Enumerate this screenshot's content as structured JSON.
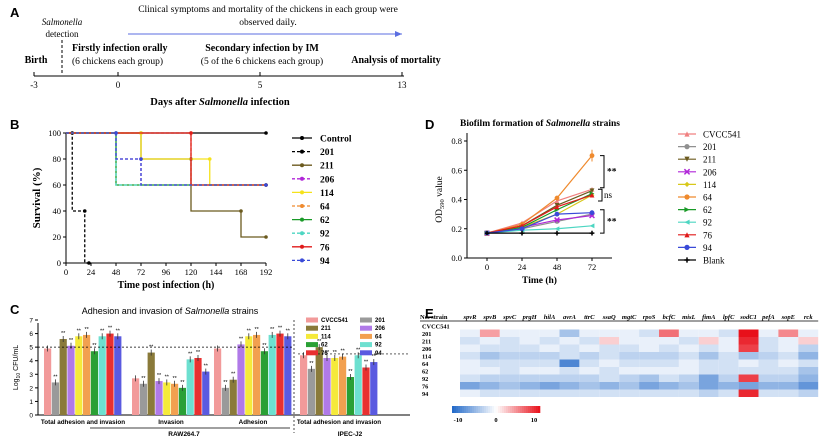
{
  "panelA": {
    "label": "A",
    "detection_line1": "Salmonella",
    "detection_line2": "detection",
    "observe_line1": "Clinical symptoms and mortality of the chickens in each group were",
    "observe_line2": "observed daily.",
    "events": [
      {
        "title": "Birth",
        "sub": ""
      },
      {
        "title": "Firstly infection orally",
        "sub": "(6 chickens each group)"
      },
      {
        "title": "Secondary infection by IM",
        "sub": "(5 of the 6 chickens each group)"
      },
      {
        "title": "Analysis of mortality",
        "sub": ""
      }
    ],
    "ticks": [
      "-3",
      "0",
      "5",
      "13"
    ],
    "axis_title": "Days after Salmonella infection",
    "axis_title_plain": "Days after ",
    "axis_title_italic": "Salmonella",
    "axis_title_end": " infection"
  },
  "chart_data": [
    {
      "panel": "B",
      "type": "line",
      "subtype": "step",
      "xlabel": "Time post infection (h)",
      "ylabel": "Survival (%)",
      "xticks": [
        0,
        24,
        48,
        72,
        96,
        120,
        144,
        168,
        192
      ],
      "yticks": [
        0,
        20,
        40,
        60,
        80,
        100
      ],
      "xlim": [
        0,
        192
      ],
      "ylim": [
        0,
        100
      ],
      "series": [
        {
          "name": "Control",
          "color": "#000000",
          "dash": false,
          "points": [
            [
              0,
              100
            ],
            [
              192,
              100
            ]
          ]
        },
        {
          "name": "201",
          "color": "#000000",
          "dash": true,
          "points": [
            [
              0,
              100
            ],
            [
              6,
              100
            ],
            [
              6,
              40
            ],
            [
              18,
              40
            ],
            [
              18,
              0
            ],
            [
              22,
              0
            ]
          ]
        },
        {
          "name": "211",
          "color": "#6b5a1e",
          "dash": false,
          "points": [
            [
              0,
              100
            ],
            [
              72,
              100
            ],
            [
              72,
              80
            ],
            [
              120,
              80
            ],
            [
              120,
              40
            ],
            [
              168,
              40
            ],
            [
              168,
              20
            ],
            [
              192,
              20
            ]
          ]
        },
        {
          "name": "206",
          "color": "#b026d8",
          "dash": true,
          "points": [
            [
              0,
              100
            ],
            [
              48,
              100
            ],
            [
              48,
              80
            ],
            [
              72,
              80
            ],
            [
              72,
              60
            ],
            [
              192,
              60
            ]
          ]
        },
        {
          "name": "114",
          "color": "#f5e21a",
          "dash": false,
          "points": [
            [
              0,
              100
            ],
            [
              72,
              100
            ],
            [
              72,
              80
            ],
            [
              138,
              80
            ],
            [
              138,
              60
            ],
            [
              192,
              60
            ]
          ]
        },
        {
          "name": "64",
          "color": "#ef8a2e",
          "dash": true,
          "points": [
            [
              0,
              100
            ],
            [
              120,
              100
            ],
            [
              120,
              60
            ],
            [
              192,
              60
            ]
          ]
        },
        {
          "name": "62",
          "color": "#1a9a28",
          "dash": false,
          "points": [
            [
              0,
              100
            ],
            [
              48,
              100
            ],
            [
              48,
              60
            ],
            [
              192,
              60
            ]
          ]
        },
        {
          "name": "92",
          "color": "#4dd6c2",
          "dash": true,
          "points": [
            [
              0,
              100
            ],
            [
              48,
              100
            ],
            [
              48,
              60
            ],
            [
              192,
              60
            ]
          ]
        },
        {
          "name": "76",
          "color": "#e01a1a",
          "dash": false,
          "points": [
            [
              0,
              100
            ],
            [
              120,
              100
            ],
            [
              120,
              60
            ],
            [
              192,
              60
            ]
          ]
        },
        {
          "name": "94",
          "color": "#3a4ad8",
          "dash": true,
          "points": [
            [
              0,
              100
            ],
            [
              48,
              100
            ],
            [
              48,
              80
            ],
            [
              72,
              80
            ],
            [
              72,
              60
            ],
            [
              192,
              60
            ]
          ]
        }
      ]
    },
    {
      "panel": "C",
      "type": "bar",
      "title": "Adhesion and invasion of Salmonella strains",
      "title_plain": "Adhesion and invasion of ",
      "title_italic": "Salmonella",
      "title_end": " strains",
      "ylabel": "Log10 CFU/mL",
      "ylabel_main": "Log",
      "ylabel_sub": "10",
      "ylabel_end": " CFU/mL",
      "yticks": [
        0,
        1,
        2,
        3,
        4,
        5,
        6,
        7
      ],
      "ylim": [
        0,
        7
      ],
      "reference_line": 5,
      "reference_line_right": 4.5,
      "groups": [
        "Total adhesion and invasion",
        "Invasion",
        "Adhesion",
        "Total adhesion and invasion"
      ],
      "group_labels_under": [
        "RAW264.7",
        "IPEC-J2"
      ],
      "series": [
        {
          "name": "CVCC541",
          "color": "#f29a9a",
          "values": [
            4.9,
            2.7,
            4.9,
            4.4
          ]
        },
        {
          "name": "201",
          "color": "#9a9a9a",
          "values": [
            2.4,
            2.3,
            2.0,
            3.4
          ]
        },
        {
          "name": "211",
          "color": "#8a7a3a",
          "values": [
            5.6,
            4.6,
            2.6,
            5.0
          ]
        },
        {
          "name": "206",
          "color": "#b07ae8",
          "values": [
            5.1,
            2.5,
            5.2,
            4.2
          ]
        },
        {
          "name": "114",
          "color": "#f5ea3a",
          "values": [
            5.8,
            2.4,
            5.8,
            4.2
          ]
        },
        {
          "name": "64",
          "color": "#f2a050",
          "values": [
            5.9,
            2.3,
            5.9,
            4.3
          ]
        },
        {
          "name": "62",
          "color": "#2aa035",
          "values": [
            4.7,
            2.0,
            4.7,
            2.8
          ]
        },
        {
          "name": "92",
          "color": "#6de0d0",
          "values": [
            5.8,
            4.1,
            5.9,
            4.4
          ]
        },
        {
          "name": "76",
          "color": "#e83030",
          "values": [
            6.0,
            4.2,
            6.0,
            3.5
          ]
        },
        {
          "name": "94",
          "color": "#5a5ae0",
          "values": [
            5.8,
            3.2,
            5.8,
            3.9
          ]
        }
      ],
      "sig_label": "**"
    },
    {
      "panel": "D",
      "type": "line",
      "title": "Biofilm formation of Salmonella strains",
      "title_plain": "Biofilm formation of ",
      "title_italic": "Salmonella",
      "title_end": " strains",
      "xlabel": "Time (h)",
      "ylabel": "OD590 value",
      "ylabel_main": "OD",
      "ylabel_sub": "590",
      "ylabel_end": " value",
      "x": [
        0,
        24,
        48,
        72
      ],
      "xlim": [
        0,
        72
      ],
      "ylim": [
        0,
        0.8
      ],
      "yticks": [
        0.0,
        0.2,
        0.4,
        0.6,
        0.8
      ],
      "series": [
        {
          "name": "CVCC541",
          "color": "#f08080",
          "marker": "triangle-up",
          "values": [
            0.17,
            0.24,
            0.39,
            0.47
          ]
        },
        {
          "name": "201",
          "color": "#909090",
          "marker": "circle",
          "values": [
            0.17,
            0.2,
            0.25,
            0.3
          ]
        },
        {
          "name": "211",
          "color": "#6b5a1e",
          "marker": "triangle-down",
          "values": [
            0.17,
            0.22,
            0.36,
            0.46
          ]
        },
        {
          "name": "206",
          "color": "#b026d8",
          "marker": "x",
          "values": [
            0.17,
            0.21,
            0.26,
            0.29
          ]
        },
        {
          "name": "114",
          "color": "#d8c81a",
          "marker": "diamond",
          "values": [
            0.17,
            0.21,
            0.3,
            0.43
          ]
        },
        {
          "name": "64",
          "color": "#ef8a2e",
          "marker": "circle",
          "values": [
            0.17,
            0.23,
            0.41,
            0.7
          ]
        },
        {
          "name": "62",
          "color": "#1a9a28",
          "marker": "triangle-right",
          "values": [
            0.17,
            0.21,
            0.33,
            0.44
          ]
        },
        {
          "name": "92",
          "color": "#4dd6c2",
          "marker": "triangle-left",
          "values": [
            0.17,
            0.19,
            0.2,
            0.22
          ]
        },
        {
          "name": "76",
          "color": "#e01a1a",
          "marker": "triangle-up",
          "values": [
            0.17,
            0.22,
            0.35,
            0.43
          ]
        },
        {
          "name": "94",
          "color": "#3a4ad8",
          "marker": "circle",
          "values": [
            0.17,
            0.2,
            0.3,
            0.31
          ]
        },
        {
          "name": "Blank",
          "color": "#000000",
          "marker": "plus",
          "values": [
            0.17,
            0.17,
            0.17,
            0.17
          ]
        }
      ],
      "annotations": [
        "**",
        "ns",
        "**"
      ]
    },
    {
      "panel": "E",
      "type": "heatmap",
      "corner_label": "No. strain",
      "columns": [
        "spvR",
        "spvB",
        "spvC",
        "prgH",
        "hilA",
        "avrA",
        "ttrC",
        "ssaQ",
        "mgtC",
        "rpoS",
        "bcfC",
        "misL",
        "fimA",
        "lpfC",
        "sodC1",
        "pefA",
        "sopE",
        "rck"
      ],
      "rows": [
        "CVCC541",
        "201",
        "211",
        "206",
        "114",
        "64",
        "62",
        "92",
        "76",
        "94"
      ],
      "values": [
        [
          0,
          0,
          0,
          0,
          0,
          0,
          0,
          0,
          0,
          0,
          0,
          0,
          0,
          0,
          0,
          0,
          0,
          0
        ],
        [
          -1,
          4,
          -1,
          -1,
          -1,
          -4,
          -1,
          -1,
          -1,
          -2,
          6,
          -1,
          -1,
          -2,
          10,
          -1,
          5,
          -1
        ],
        [
          -2,
          -1,
          -2,
          -1,
          -2,
          -1,
          -2,
          2,
          -1,
          -1,
          -1,
          -2,
          2,
          -1,
          9,
          -2,
          -1,
          2
        ],
        [
          -1,
          -2,
          -2,
          -2,
          -1,
          -2,
          -1,
          -2,
          -2,
          -1,
          -2,
          -1,
          -2,
          -1,
          8,
          -2,
          -1,
          -3
        ],
        [
          -2,
          -4,
          -3,
          -3,
          -3,
          -2,
          -3,
          -2,
          -3,
          -3,
          -3,
          -2,
          -4,
          -2,
          -4,
          -3,
          -2,
          -5
        ],
        [
          -1,
          -2,
          -2,
          -2,
          -2,
          -8,
          -2,
          -1,
          -2,
          -2,
          -2,
          -1,
          -2,
          -2,
          -1,
          -2,
          -1,
          -2
        ],
        [
          -1,
          -1,
          -2,
          -1,
          -1,
          -2,
          -1,
          -2,
          -1,
          -1,
          -1,
          -1,
          -2,
          -2,
          -2,
          -2,
          -2,
          -4
        ],
        [
          -2,
          -3,
          -3,
          -3,
          -3,
          -3,
          -3,
          -2,
          -3,
          -4,
          -2,
          -3,
          -6,
          -3,
          8,
          -3,
          -3,
          -5
        ],
        [
          -6,
          -5,
          -4,
          -5,
          -6,
          -5,
          -4,
          -5,
          -4,
          -6,
          -5,
          -4,
          -6,
          -5,
          -6,
          -5,
          -5,
          -7
        ],
        [
          -1,
          -2,
          -2,
          -2,
          -2,
          -2,
          -2,
          -2,
          -2,
          -2,
          -2,
          -2,
          -3,
          -2,
          9,
          -2,
          -2,
          -3
        ]
      ],
      "colorbar_ticks": [
        "-10",
        "0",
        "10"
      ],
      "vmin": -10,
      "vmax": 10,
      "cmap": [
        "#2068c8",
        "#ffffff",
        "#e8101a"
      ]
    }
  ],
  "panel_labels": [
    "B",
    "C",
    "D",
    "E"
  ]
}
